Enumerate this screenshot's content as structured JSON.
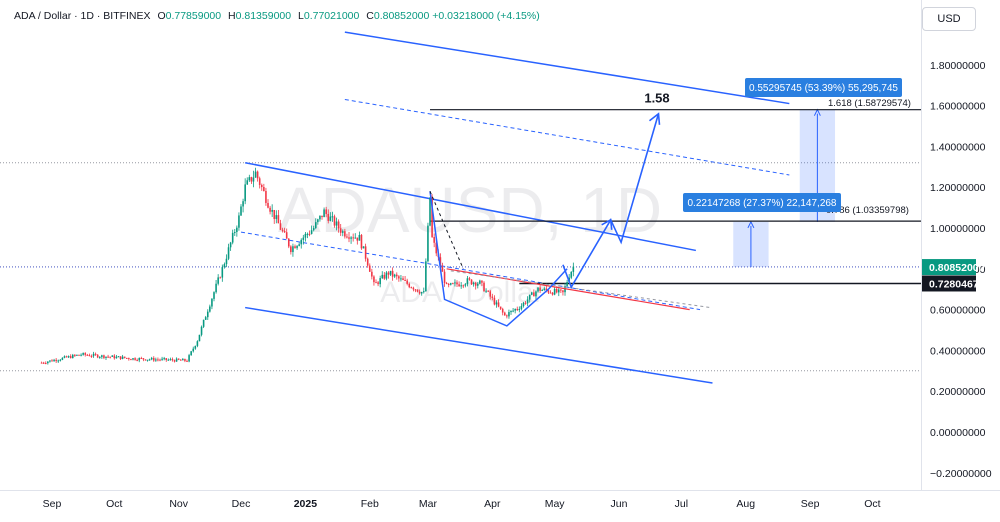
{
  "header": {
    "symbol": "ADA / Dollar · 1D · BITFINEX",
    "open_label": "O",
    "open": "0.77859000",
    "high_label": "H",
    "high": "0.81359000",
    "low_label": "L",
    "low": "0.77021000",
    "close_label": "C",
    "close": "0.80852000",
    "change": "+0.03218000 (+4.15%)"
  },
  "currency_button": "USD",
  "watermark": {
    "ticker": "ADAUSD, 1D",
    "name": "ADA / Dollar"
  },
  "colors": {
    "up": "#089981",
    "down": "#f23645",
    "trend": "#2962ff",
    "price_label": "#089981",
    "level": "#131722",
    "measure": "#2a7fe0",
    "axis_text": "#131722"
  },
  "chart_data": {
    "type": "candlestick",
    "title": "ADA / Dollar · 1D · BITFINEX",
    "ylim": [
      -0.22,
      2.05
    ],
    "y_ticks": [
      "1.80000000",
      "1.60000000",
      "1.40000000",
      "1.20000000",
      "1.00000000",
      "0.80000000",
      "0.60000000",
      "0.40000000",
      "0.20000000",
      "0.00000000",
      "−0.20000000"
    ],
    "y_tick_values": [
      1.8,
      1.6,
      1.4,
      1.2,
      1.0,
      0.8,
      0.6,
      0.4,
      0.2,
      0.0,
      -0.2
    ],
    "x_ticks": [
      "Sep",
      "Oct",
      "Nov",
      "Dec",
      "2025",
      "Feb",
      "Mar",
      "Apr",
      "May",
      "Jun",
      "Jul",
      "Aug",
      "Sep",
      "Oct"
    ],
    "x_tick_dates": [
      "2024-09-01",
      "2024-10-01",
      "2024-11-01",
      "2024-12-01",
      "2025-01-01",
      "2025-02-01",
      "2025-03-01",
      "2025-04-01",
      "2025-05-01",
      "2025-06-01",
      "2025-07-01",
      "2025-08-01",
      "2025-09-01",
      "2025-10-01"
    ],
    "price_anchor_dates": [
      "2024-08-27",
      "2024-09-15",
      "2024-10-10",
      "2024-11-05",
      "2024-11-10",
      "2024-11-15",
      "2024-11-22",
      "2024-11-30",
      "2024-12-03",
      "2024-12-08",
      "2024-12-15",
      "2024-12-25",
      "2025-01-05",
      "2025-01-10",
      "2025-01-19",
      "2025-01-27",
      "2025-02-01",
      "2025-02-03",
      "2025-02-10",
      "2025-02-27",
      "2025-03-02",
      "2025-03-03",
      "2025-03-10",
      "2025-03-20",
      "2025-03-26",
      "2025-04-07",
      "2025-04-15",
      "2025-04-23",
      "2025-05-05",
      "2025-05-08",
      "2025-05-10"
    ],
    "price_anchor_closes": [
      0.34,
      0.38,
      0.36,
      0.35,
      0.45,
      0.6,
      0.8,
      1.05,
      1.2,
      1.27,
      1.1,
      0.9,
      1.0,
      1.08,
      0.98,
      0.95,
      0.8,
      0.72,
      0.78,
      0.68,
      1.15,
      0.95,
      0.71,
      0.74,
      0.73,
      0.57,
      0.62,
      0.7,
      0.68,
      0.77,
      0.81
    ],
    "last_price": "0.80852000",
    "level_price": "0.72804674",
    "level_value": 0.72804674,
    "level_1_58": {
      "label": "1.58",
      "value": 1.58
    },
    "level_1_03": {
      "label": "0.786 (1.03359798)",
      "value": 1.03359798
    },
    "level_1_58_fib": {
      "label": "1.618 (1.58729574)",
      "value": 1.58729574
    },
    "measure_1": {
      "label": "0.22147268 (27.37%) 22,147,268",
      "from": 0.80852,
      "to": 1.03
    },
    "measure_2": {
      "label": "0.55295745 (53.39%) 55,295,745",
      "from": 1.03,
      "to": 1.58
    },
    "reference_levels": [
      1.32,
      0.81,
      0.3
    ],
    "channel_upper": [
      [
        "2024-12-03",
        1.32
      ],
      [
        "2025-07-08",
        0.89
      ]
    ],
    "channel_lower": [
      [
        "2024-12-03",
        0.61
      ],
      [
        "2025-07-16",
        0.24
      ]
    ],
    "channel_mid_dashed": [
      [
        "2024-12-01",
        0.98
      ],
      [
        "2025-07-10",
        0.6
      ]
    ],
    "outer_channel": [
      [
        "2025-01-20",
        1.96
      ],
      [
        "2025-08-22",
        1.61
      ]
    ],
    "outer_channel_dashed": [
      [
        "2025-01-20",
        1.63
      ],
      [
        "2025-08-22",
        1.26
      ]
    ],
    "neckline_red": [
      [
        "2025-03-10",
        0.8
      ],
      [
        "2025-07-05",
        0.6
      ]
    ],
    "projection": [
      [
        "2025-05-05",
        0.82
      ],
      [
        "2025-05-09",
        0.71
      ],
      [
        "2025-05-28",
        1.04
      ],
      [
        "2025-06-02",
        0.93
      ],
      [
        "2025-06-20",
        1.56
      ]
    ],
    "pattern_path": [
      [
        "2025-03-02",
        1.18
      ],
      [
        "2025-03-09",
        0.65
      ],
      [
        "2025-04-08",
        0.52
      ],
      [
        "2025-04-28",
        0.7
      ],
      [
        "2025-05-07",
        0.8
      ]
    ]
  }
}
